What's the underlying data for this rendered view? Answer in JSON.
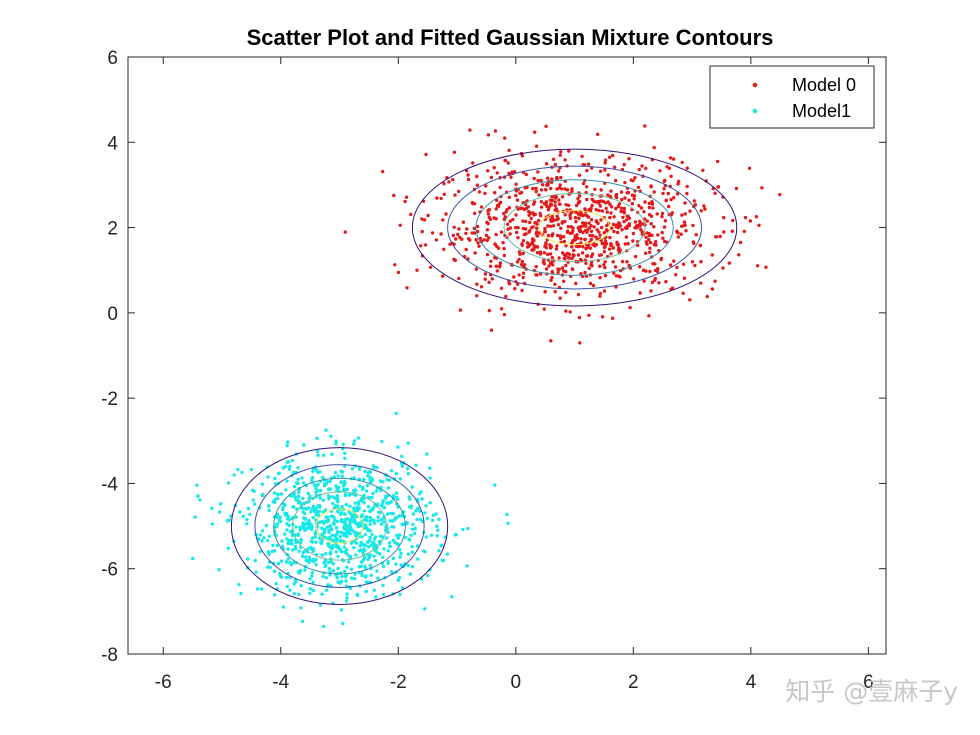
{
  "watermark": "知乎 @壹麻子y",
  "chart_data": {
    "type": "scatter",
    "title": "Scatter Plot and Fitted Gaussian Mixture Contours",
    "xlabel": "",
    "ylabel": "",
    "xlim": [
      -6.6,
      6.3
    ],
    "ylim": [
      -8,
      6
    ],
    "xticks": [
      -6,
      -4,
      -2,
      0,
      2,
      4,
      6
    ],
    "yticks": [
      -8,
      -6,
      -4,
      -2,
      0,
      2,
      4,
      6
    ],
    "grid": false,
    "legend_position": "top-right",
    "series": [
      {
        "name": "Model 0",
        "color": "#e31a1c",
        "n_points": 1000,
        "mean": [
          1.0,
          2.0
        ],
        "std": [
          1.2,
          0.8
        ],
        "marker": "dot"
      },
      {
        "name": "Model1",
        "color": "#17e8e8",
        "n_points": 1000,
        "mean": [
          -3.0,
          -5.0
        ],
        "std": [
          0.8,
          0.8
        ],
        "marker": "dot"
      }
    ],
    "contours": {
      "description": "Fitted Gaussian mixture density contours",
      "sigma_levels": [
        0.5,
        1.0,
        1.4,
        1.8,
        2.3
      ],
      "colors": [
        "#f2e34a",
        "#6fbfa0",
        "#3a8fa8",
        "#3b4fa8",
        "#35107a"
      ],
      "components": [
        {
          "mean": [
            1.0,
            2.0
          ],
          "std": [
            1.2,
            0.8
          ]
        },
        {
          "mean": [
            -3.0,
            -5.0
          ],
          "std": [
            0.8,
            0.8
          ]
        }
      ]
    }
  }
}
